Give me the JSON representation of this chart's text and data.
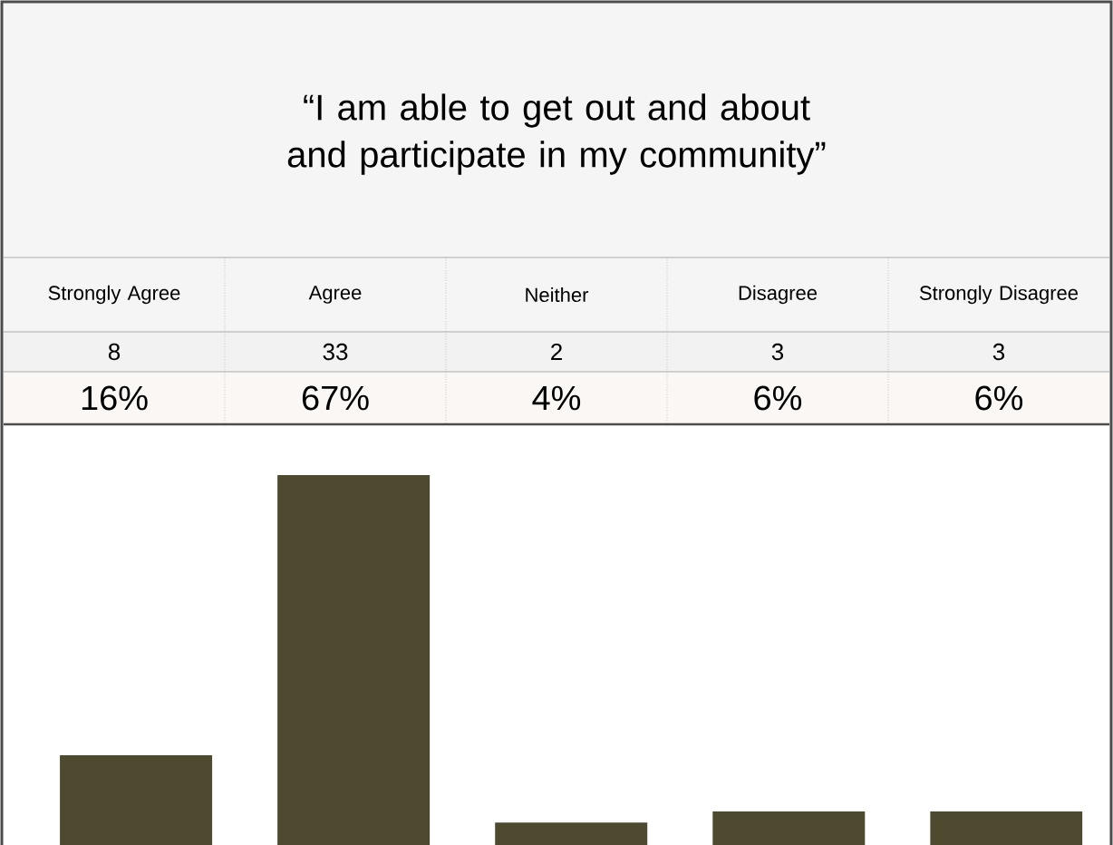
{
  "chart_data": {
    "type": "bar",
    "title": "“I am able to get out and about and participate in my community”",
    "categories": [
      "Strongly Agree",
      "Agree",
      "Neither",
      "Disagree",
      "Strongly Disagree"
    ],
    "values": [
      8,
      33,
      2,
      3,
      3
    ],
    "color": "#4d4a2f",
    "data_labels": true,
    "annotations": [
      "16%",
      "67%",
      "4%",
      "6%",
      "6%"
    ]
  }
}
